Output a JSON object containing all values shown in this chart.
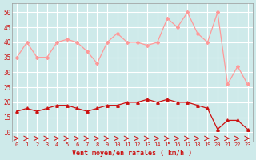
{
  "x": [
    0,
    1,
    2,
    3,
    4,
    5,
    6,
    7,
    8,
    9,
    10,
    11,
    12,
    13,
    14,
    15,
    16,
    17,
    18,
    19,
    20,
    21,
    22,
    23
  ],
  "wind_avg": [
    17,
    18,
    17,
    18,
    19,
    19,
    18,
    17,
    18,
    19,
    19,
    20,
    20,
    21,
    20,
    21,
    20,
    20,
    19,
    18,
    11,
    14,
    14,
    11
  ],
  "wind_gust": [
    35,
    40,
    35,
    35,
    40,
    41,
    40,
    37,
    33,
    40,
    43,
    40,
    40,
    39,
    40,
    48,
    45,
    50,
    43,
    40,
    50,
    26,
    32,
    26
  ],
  "ylabel_ticks": [
    10,
    15,
    20,
    25,
    30,
    35,
    40,
    45,
    50
  ],
  "xlabel": "Vent moyen/en rafales ( km/h )",
  "bg_color": "#ceeaea",
  "grid_color": "#ffffff",
  "line_color_avg": "#cc1111",
  "line_color_gust": "#ff9999",
  "arrow_color": "#cc1111",
  "ylim": [
    7,
    53
  ],
  "xlim": [
    -0.5,
    23.5
  ]
}
